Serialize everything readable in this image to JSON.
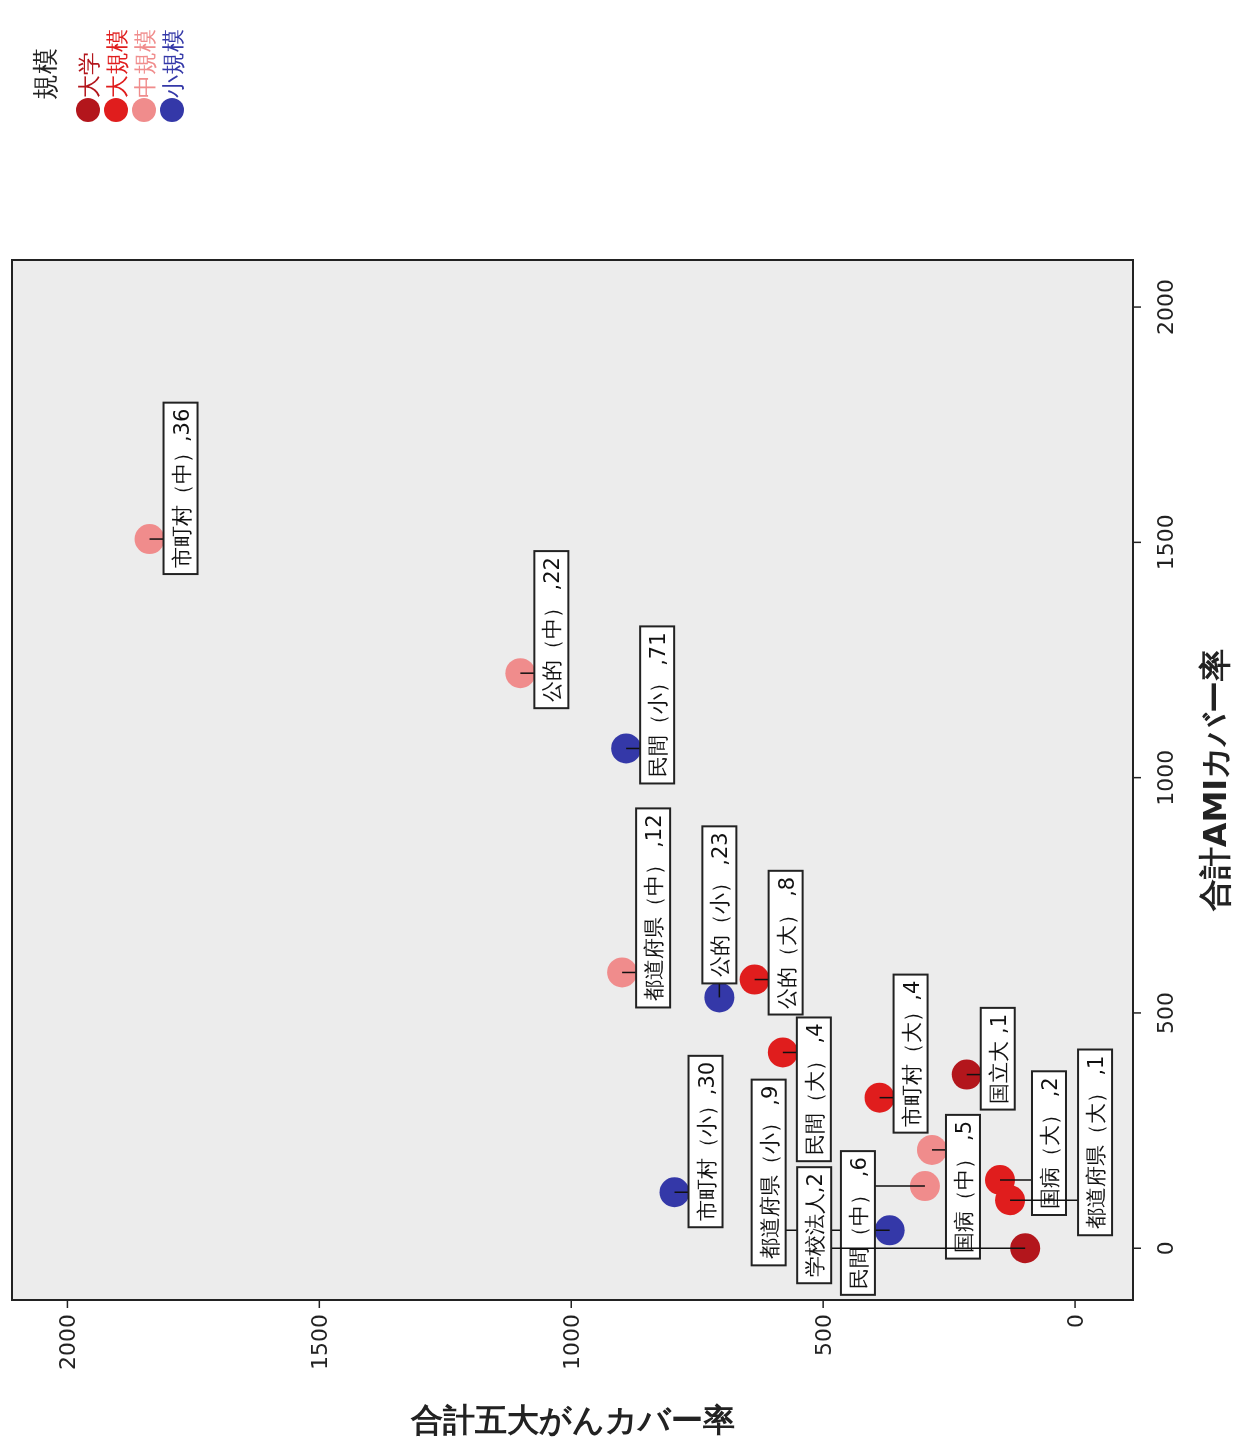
{
  "chart_data": {
    "type": "scatter",
    "xlabel": "合計五大がんカバー率",
    "ylabel": "合計AMIカバー率",
    "legend_title": "規模",
    "legend": "top left",
    "marker": "circle",
    "xlim": [
      2110,
      -115
    ],
    "xticks": [
      2000,
      1500,
      1000,
      500,
      0
    ],
    "ylim": [
      -110,
      2100
    ],
    "yticks": [
      0,
      500,
      1000,
      1500,
      2000
    ],
    "series": [
      {
        "name": "大学",
        "color": "#b3161c",
        "x": [
          215,
          99
        ],
        "values": [
          369,
          0
        ]
      },
      {
        "name": "大規模",
        "color": "#e01d1d",
        "x": [
          636,
          580,
          388,
          149,
          129
        ],
        "values": [
          571,
          416,
          320,
          145,
          102
        ]
      },
      {
        "name": "中規模",
        "color": "#f08c8c",
        "x": [
          1837,
          1101,
          899,
          284,
          298
        ],
        "values": [
          1507,
          1222,
          586,
          209,
          132
        ]
      },
      {
        "name": "小規模",
        "color": "#3438a8",
        "x": [
          891,
          706,
          795,
          368
        ],
        "values": [
          1062,
          533,
          119,
          38
        ]
      }
    ],
    "annotations": [
      {
        "text": "市町村（中）,36",
        "x": 1837,
        "y": 1507
      },
      {
        "text": "公的（中） ,22",
        "x": 1101,
        "y": 1222
      },
      {
        "text": "民間（小） ,71",
        "x": 891,
        "y": 1062
      },
      {
        "text": "都道府県（中） ,12",
        "x": 899,
        "y": 586
      },
      {
        "text": "公的（大） ,8",
        "x": 636,
        "y": 571
      },
      {
        "text": "公的（小） ,23",
        "x": 706,
        "y": 533
      },
      {
        "text": "民間（大） ,4",
        "x": 580,
        "y": 416
      },
      {
        "text": "市町村（小）,30",
        "x": 795,
        "y": 119
      },
      {
        "text": "都道府県（小） ,9",
        "x": 368,
        "y": 38
      },
      {
        "text": "市町村（大）,4",
        "x": 388,
        "y": 320
      },
      {
        "text": "国病（中） ,5",
        "x": 284,
        "y": 209
      },
      {
        "text": "民間（中） ,6",
        "x": 298,
        "y": 132
      },
      {
        "text": "国立大 ,1",
        "x": 215,
        "y": 369
      },
      {
        "text": "国病（大） ,2",
        "x": 149,
        "y": 145
      },
      {
        "text": "都道府県（大） ,1",
        "x": 129,
        "y": 102
      },
      {
        "text": "学校法人,2",
        "x": 99,
        "y": 0
      }
    ]
  }
}
